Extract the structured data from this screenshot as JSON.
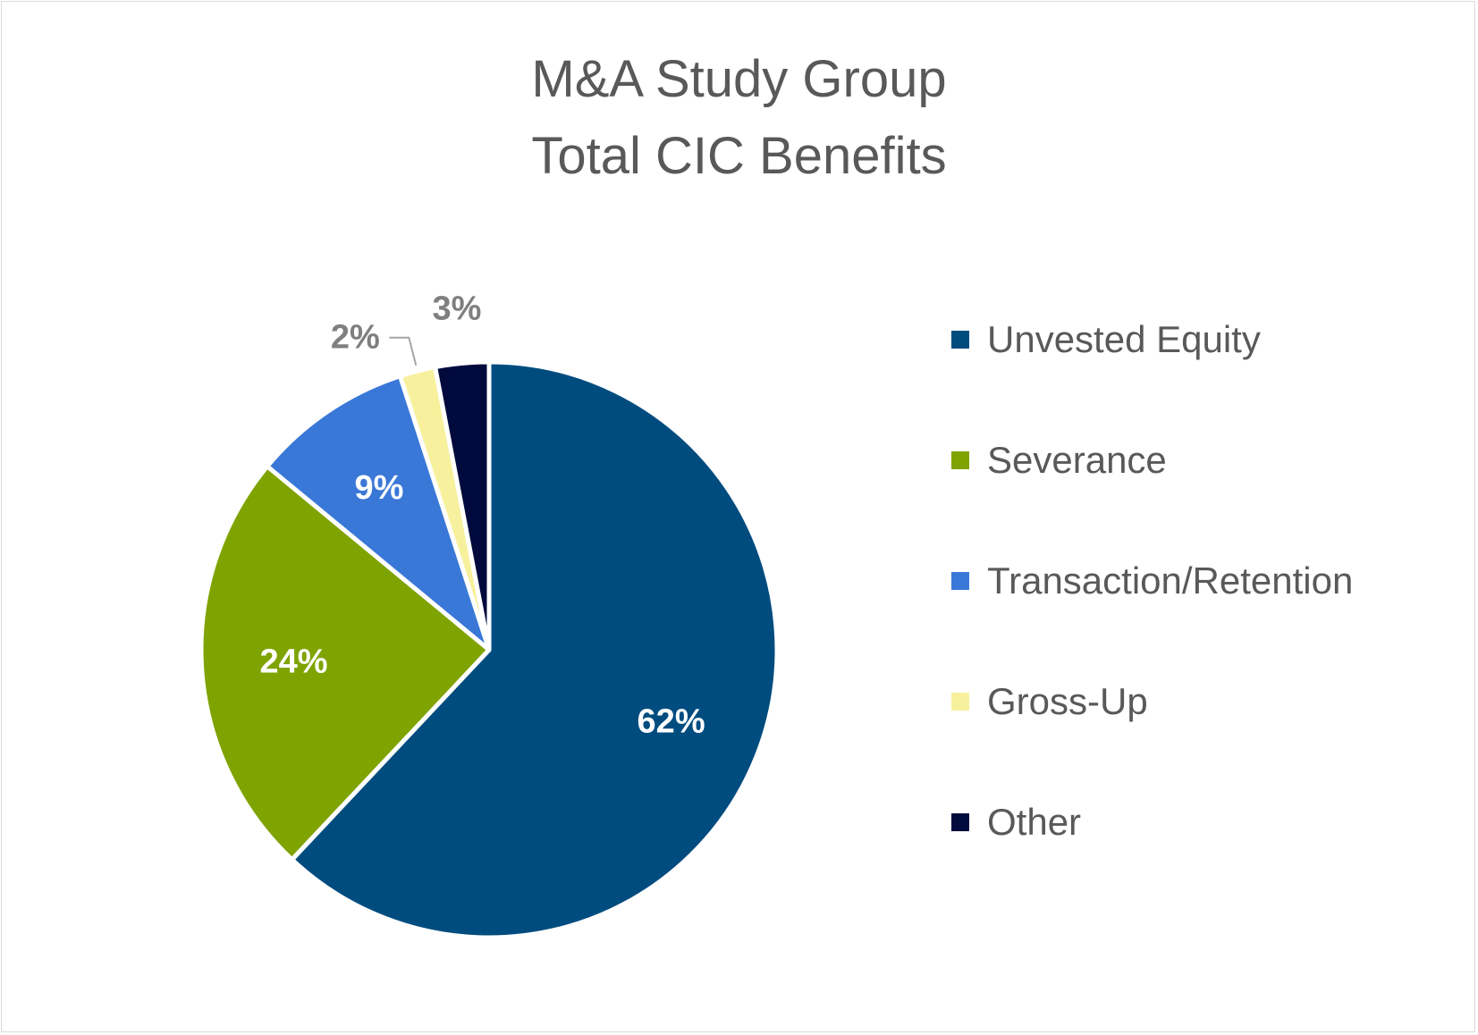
{
  "chart_data": {
    "type": "pie",
    "title": [
      "M&A Study Group",
      "Total CIC Benefits"
    ],
    "slices": [
      {
        "name": "Unvested Equity",
        "value": 62,
        "label": "62%",
        "color": "#004c7f",
        "label_color": "#ffffff",
        "label_placement": "inside"
      },
      {
        "name": "Severance",
        "value": 24,
        "label": "24%",
        "color": "#7fa300",
        "label_color": "#ffffff",
        "label_placement": "inside"
      },
      {
        "name": "Transaction/Retention",
        "value": 9,
        "label": "9%",
        "color": "#3a78d8",
        "label_color": "#ffffff",
        "label_placement": "inside"
      },
      {
        "name": "Gross-Up",
        "value": 2,
        "label": "2%",
        "color": "#f7f19d",
        "label_color": "#7f7f7f",
        "label_placement": "outside-leader"
      },
      {
        "name": "Other",
        "value": 3,
        "label": "3%",
        "color": "#000a3c",
        "label_color": "#7f7f7f",
        "label_placement": "outside"
      }
    ],
    "start_angle_deg": 0,
    "direction": "clockwise",
    "legend_position": "right"
  }
}
